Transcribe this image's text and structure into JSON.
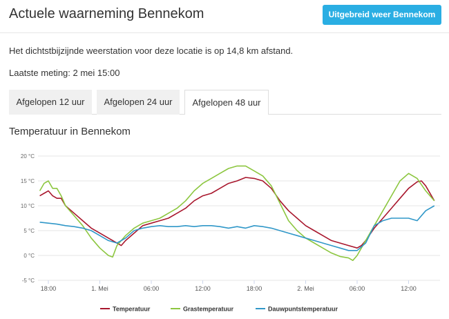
{
  "header": {
    "title": "Actuele waarneming Bennekom",
    "button_label": "Uitgebreid weer Bennekom"
  },
  "info": {
    "station_text": "Het dichtstbijzijnde weerstation voor deze locatie is op 14,8 km afstand.",
    "last_measurement": "Laatste meting: 2 mei 15:00"
  },
  "tabs": [
    {
      "label": "Afgelopen 12 uur",
      "active": false
    },
    {
      "label": "Afgelopen 24 uur",
      "active": false
    },
    {
      "label": "Afgelopen 48 uur",
      "active": true
    }
  ],
  "chart_title": "Temperatuur in Bennekom",
  "chart_data": {
    "type": "line",
    "title": "Temperatuur in Bennekom",
    "x_unit": "hours",
    "x_start": "30 april 16:00",
    "x_end": "2 mei 15:00",
    "xlim": [
      -2,
      45
    ],
    "x_ticks": [
      {
        "x": 0,
        "label": "18:00"
      },
      {
        "x": 6,
        "label": "1. Mei"
      },
      {
        "x": 12,
        "label": "06:00"
      },
      {
        "x": 18,
        "label": "12:00"
      },
      {
        "x": 24,
        "label": "18:00"
      },
      {
        "x": 30,
        "label": "2. Mei"
      },
      {
        "x": 36,
        "label": "06:00"
      },
      {
        "x": 42,
        "label": "12:00"
      }
    ],
    "ylim": [
      -5,
      20
    ],
    "y_ticks": [
      {
        "y": 20,
        "label": "20 °C"
      },
      {
        "y": 15,
        "label": "15 °C"
      },
      {
        "y": 10,
        "label": "10 °C"
      },
      {
        "y": 5,
        "label": "5 °C"
      },
      {
        "y": 0,
        "label": "0 °C"
      },
      {
        "y": -5,
        "label": "-5 °C"
      }
    ],
    "grid": true,
    "legend_position": "bottom",
    "series": [
      {
        "name": "Temperatuur",
        "color": "#a8162c",
        "points": [
          [
            -1,
            12
          ],
          [
            -0.5,
            12.5
          ],
          [
            0,
            13.0
          ],
          [
            0.5,
            12.0
          ],
          [
            1,
            11.5
          ],
          [
            1.5,
            11.5
          ],
          [
            2,
            10
          ],
          [
            3,
            8.5
          ],
          [
            4,
            7
          ],
          [
            5,
            5.5
          ],
          [
            6,
            4.5
          ],
          [
            7,
            3.5
          ],
          [
            8,
            2.5
          ],
          [
            8.5,
            2
          ],
          [
            9,
            3
          ],
          [
            10,
            4.5
          ],
          [
            11,
            6
          ],
          [
            12,
            6.5
          ],
          [
            13,
            7
          ],
          [
            14,
            7.5
          ],
          [
            15,
            8.5
          ],
          [
            16,
            9.5
          ],
          [
            17,
            11
          ],
          [
            18,
            12
          ],
          [
            19,
            12.5
          ],
          [
            20,
            13.5
          ],
          [
            21,
            14.5
          ],
          [
            22,
            15
          ],
          [
            23,
            15.7
          ],
          [
            24,
            15.5
          ],
          [
            25,
            15
          ],
          [
            26,
            13.5
          ],
          [
            27,
            11
          ],
          [
            28,
            9
          ],
          [
            29,
            7.5
          ],
          [
            30,
            6
          ],
          [
            31,
            5
          ],
          [
            32,
            4
          ],
          [
            33,
            3
          ],
          [
            34,
            2.5
          ],
          [
            35,
            2
          ],
          [
            36,
            1.5
          ],
          [
            36.5,
            2
          ],
          [
            37,
            3
          ],
          [
            38,
            5.5
          ],
          [
            39,
            7.5
          ],
          [
            40,
            9.5
          ],
          [
            41,
            11.5
          ],
          [
            42,
            13.5
          ],
          [
            43,
            14.8
          ],
          [
            43.5,
            15.0
          ],
          [
            44,
            14
          ],
          [
            45,
            11
          ]
        ]
      },
      {
        "name": "Grastemperatuur",
        "color": "#8cc63f",
        "points": [
          [
            -1,
            13
          ],
          [
            -0.5,
            14.5
          ],
          [
            0,
            15.0
          ],
          [
            0.5,
            13.5
          ],
          [
            1,
            13.5
          ],
          [
            1.5,
            12
          ],
          [
            2,
            10
          ],
          [
            3,
            8
          ],
          [
            4,
            6
          ],
          [
            5,
            3.5
          ],
          [
            6,
            1.5
          ],
          [
            7,
            0
          ],
          [
            7.5,
            -0.3
          ],
          [
            8,
            2
          ],
          [
            9,
            4
          ],
          [
            10,
            5.5
          ],
          [
            11,
            6.5
          ],
          [
            12,
            7
          ],
          [
            13,
            7.5
          ],
          [
            14,
            8.5
          ],
          [
            15,
            9.5
          ],
          [
            16,
            11
          ],
          [
            17,
            13
          ],
          [
            18,
            14.5
          ],
          [
            19,
            15.5
          ],
          [
            20,
            16.5
          ],
          [
            21,
            17.5
          ],
          [
            22,
            18
          ],
          [
            23,
            18
          ],
          [
            24,
            17
          ],
          [
            25,
            16
          ],
          [
            26,
            14
          ],
          [
            27,
            10.5
          ],
          [
            28,
            7
          ],
          [
            29,
            5
          ],
          [
            30,
            3.5
          ],
          [
            31,
            2.5
          ],
          [
            32,
            1.5
          ],
          [
            33,
            0.5
          ],
          [
            34,
            -0.2
          ],
          [
            35,
            -0.5
          ],
          [
            35.5,
            -1
          ],
          [
            36,
            0
          ],
          [
            37,
            3
          ],
          [
            38,
            6
          ],
          [
            39,
            9
          ],
          [
            40,
            12
          ],
          [
            41,
            15
          ],
          [
            42,
            16.5
          ],
          [
            43,
            15.5
          ],
          [
            44,
            13
          ],
          [
            45,
            11
          ]
        ]
      },
      {
        "name": "Dauwpuntstemperatuur",
        "color": "#2f97c8",
        "points": [
          [
            -1,
            6.7
          ],
          [
            0,
            6.5
          ],
          [
            1,
            6.3
          ],
          [
            2,
            6.0
          ],
          [
            3,
            5.8
          ],
          [
            4,
            5.5
          ],
          [
            5,
            5
          ],
          [
            6,
            4
          ],
          [
            7,
            3
          ],
          [
            8,
            2.5
          ],
          [
            9,
            3.5
          ],
          [
            10,
            5
          ],
          [
            11,
            5.5
          ],
          [
            12,
            5.8
          ],
          [
            13,
            6
          ],
          [
            14,
            5.8
          ],
          [
            15,
            5.8
          ],
          [
            16,
            6
          ],
          [
            17,
            5.8
          ],
          [
            18,
            6
          ],
          [
            19,
            6
          ],
          [
            20,
            5.8
          ],
          [
            21,
            5.5
          ],
          [
            22,
            5.8
          ],
          [
            23,
            5.5
          ],
          [
            24,
            6
          ],
          [
            25,
            5.8
          ],
          [
            26,
            5.5
          ],
          [
            27,
            5
          ],
          [
            28,
            4.5
          ],
          [
            29,
            4
          ],
          [
            30,
            3.5
          ],
          [
            31,
            3
          ],
          [
            32,
            2.5
          ],
          [
            33,
            2
          ],
          [
            34,
            1.5
          ],
          [
            35,
            1
          ],
          [
            36,
            1
          ],
          [
            37,
            2.5
          ],
          [
            38,
            6
          ],
          [
            39,
            7
          ],
          [
            40,
            7.5
          ],
          [
            41,
            7.5
          ],
          [
            42,
            7.5
          ],
          [
            43,
            7
          ],
          [
            44,
            9
          ],
          [
            45,
            10
          ]
        ]
      }
    ]
  }
}
